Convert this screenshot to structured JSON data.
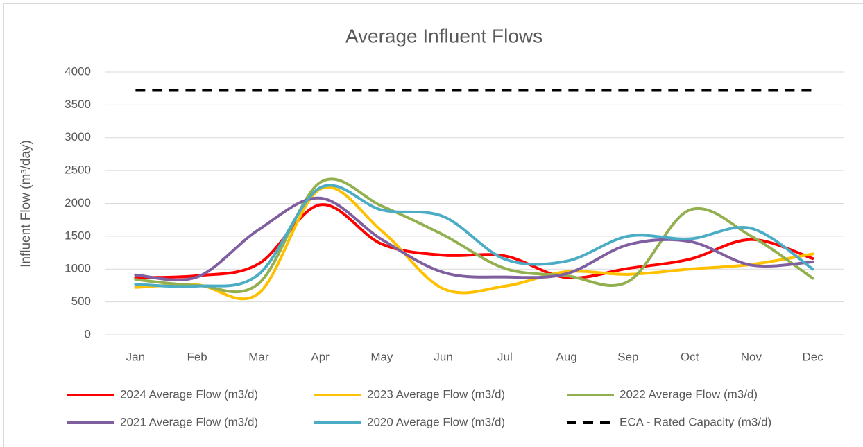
{
  "chart_data": {
    "type": "line",
    "title": "Average Influent Flows",
    "y_label": "Influent Flow (m³/day)",
    "categories": [
      "Jan",
      "Feb",
      "Mar",
      "Apr",
      "May",
      "Jun",
      "Jul",
      "Aug",
      "Sep",
      "Oct",
      "Nov",
      "Dec"
    ],
    "series": [
      {
        "name": "2024 Average Flow (m3/d)",
        "color": "#ff0000",
        "values": [
          870,
          900,
          1080,
          1980,
          1380,
          1210,
          1200,
          870,
          1010,
          1150,
          1450,
          1160
        ]
      },
      {
        "name": "2023 Average Flow (m3/d)",
        "color": "#ffc000",
        "values": [
          720,
          760,
          630,
          2220,
          1580,
          700,
          740,
          960,
          920,
          1000,
          1070,
          1230
        ]
      },
      {
        "name": "2022 Average Flow (m3/d)",
        "color": "#92b050",
        "values": [
          840,
          750,
          780,
          2320,
          1960,
          1520,
          1010,
          900,
          810,
          1900,
          1500,
          860
        ]
      },
      {
        "name": "2021 Average Flow (m3/d)",
        "color": "#7f5f9f",
        "values": [
          910,
          880,
          1600,
          2080,
          1450,
          950,
          880,
          930,
          1370,
          1420,
          1060,
          1110
        ]
      },
      {
        "name": "2020 Average Flow (m3/d)",
        "color": "#4bacc6",
        "values": [
          770,
          740,
          920,
          2240,
          1900,
          1800,
          1150,
          1120,
          1500,
          1460,
          1620,
          1000
        ]
      },
      {
        "name": "ECA - Rated Capacity (m3/d)",
        "color": "#000000",
        "dashed": true,
        "values": [
          3720,
          3720,
          3720,
          3720,
          3720,
          3720,
          3720,
          3720,
          3720,
          3720,
          3720,
          3720
        ]
      }
    ],
    "ylim": [
      0,
      4000
    ],
    "yticks": [
      0,
      500,
      1000,
      1500,
      2000,
      2500,
      3000,
      3500,
      4000
    ],
    "grid": true,
    "smooth": true,
    "legend": "bottom"
  }
}
